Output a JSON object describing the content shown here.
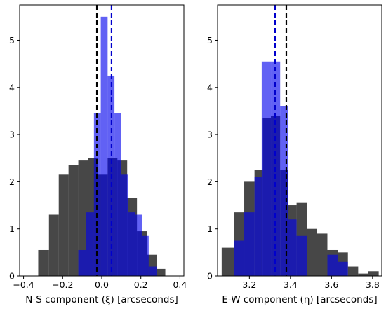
{
  "chart_data": [
    {
      "type": "histogram",
      "xlabel": "N-S component (ξ) [arcseconds]",
      "ylabel": "",
      "xlim": [
        -0.42,
        0.42
      ],
      "ylim": [
        0,
        5.75
      ],
      "xticks": [
        -0.4,
        -0.2,
        0.0,
        0.2,
        0.4
      ],
      "xtick_labels": [
        "−0.4",
        "−0.2",
        "0.0",
        "0.2",
        "0.4"
      ],
      "yticks": [
        0,
        1,
        2,
        3,
        4,
        5
      ],
      "ytick_labels": [
        "0",
        "1",
        "2",
        "3",
        "4",
        "5"
      ],
      "grid": false,
      "series": [
        {
          "color": "#000000",
          "opacity": 0.72,
          "bins": [
            {
              "x0": -0.325,
              "x1": -0.27,
              "y": 0.55
            },
            {
              "x0": -0.27,
              "x1": -0.22,
              "y": 1.3
            },
            {
              "x0": -0.22,
              "x1": -0.17,
              "y": 2.15
            },
            {
              "x0": -0.17,
              "x1": -0.12,
              "y": 2.35
            },
            {
              "x0": -0.12,
              "x1": -0.07,
              "y": 2.45
            },
            {
              "x0": -0.07,
              "x1": -0.02,
              "y": 2.5
            },
            {
              "x0": -0.02,
              "x1": 0.03,
              "y": 2.15
            },
            {
              "x0": 0.03,
              "x1": 0.08,
              "y": 2.5
            },
            {
              "x0": 0.08,
              "x1": 0.13,
              "y": 2.45
            },
            {
              "x0": 0.13,
              "x1": 0.18,
              "y": 1.65
            },
            {
              "x0": 0.18,
              "x1": 0.23,
              "y": 0.95
            },
            {
              "x0": 0.23,
              "x1": 0.28,
              "y": 0.45
            },
            {
              "x0": 0.28,
              "x1": 0.325,
              "y": 0.15
            }
          ]
        },
        {
          "color": "#0000ee",
          "opacity": 0.62,
          "bins": [
            {
              "x0": -0.12,
              "x1": -0.08,
              "y": 0.55
            },
            {
              "x0": -0.08,
              "x1": -0.04,
              "y": 1.35
            },
            {
              "x0": -0.04,
              "x1": -0.005,
              "y": 3.45
            },
            {
              "x0": -0.005,
              "x1": 0.03,
              "y": 5.5
            },
            {
              "x0": 0.03,
              "x1": 0.065,
              "y": 4.25
            },
            {
              "x0": 0.065,
              "x1": 0.1,
              "y": 3.45
            },
            {
              "x0": 0.1,
              "x1": 0.135,
              "y": 2.15
            },
            {
              "x0": 0.135,
              "x1": 0.17,
              "y": 1.35
            },
            {
              "x0": 0.17,
              "x1": 0.205,
              "y": 1.3
            },
            {
              "x0": 0.205,
              "x1": 0.24,
              "y": 0.85
            },
            {
              "x0": 0.24,
              "x1": 0.28,
              "y": 0.2
            }
          ]
        }
      ],
      "vlines": [
        {
          "x": -0.025,
          "color": "#000000"
        },
        {
          "x": 0.05,
          "color": "#0000cc"
        }
      ]
    },
    {
      "type": "histogram",
      "xlabel": "E-W component (η) [arcseconds]",
      "ylabel": "",
      "xlim": [
        3.045,
        3.845
      ],
      "ylim": [
        0,
        5.75
      ],
      "xticks": [
        3.2,
        3.4,
        3.6,
        3.8
      ],
      "xtick_labels": [
        "3.2",
        "3.4",
        "3.6",
        "3.8"
      ],
      "yticks": [
        0,
        1,
        2,
        3,
        4,
        5
      ],
      "ytick_labels": [
        "0",
        "1",
        "2",
        "3",
        "4",
        "5"
      ],
      "grid": false,
      "series": [
        {
          "color": "#000000",
          "opacity": 0.72,
          "bins": [
            {
              "x0": 3.065,
              "x1": 3.125,
              "y": 0.6
            },
            {
              "x0": 3.125,
              "x1": 3.175,
              "y": 1.35
            },
            {
              "x0": 3.175,
              "x1": 3.225,
              "y": 2.0
            },
            {
              "x0": 3.225,
              "x1": 3.265,
              "y": 2.25
            },
            {
              "x0": 3.265,
              "x1": 3.305,
              "y": 3.35
            },
            {
              "x0": 3.305,
              "x1": 3.35,
              "y": 3.4
            },
            {
              "x0": 3.35,
              "x1": 3.39,
              "y": 2.25
            },
            {
              "x0": 3.39,
              "x1": 3.43,
              "y": 1.5
            },
            {
              "x0": 3.43,
              "x1": 3.48,
              "y": 1.55
            },
            {
              "x0": 3.48,
              "x1": 3.53,
              "y": 1.0
            },
            {
              "x0": 3.53,
              "x1": 3.58,
              "y": 0.9
            },
            {
              "x0": 3.58,
              "x1": 3.63,
              "y": 0.55
            },
            {
              "x0": 3.63,
              "x1": 3.68,
              "y": 0.5
            },
            {
              "x0": 3.68,
              "x1": 3.73,
              "y": 0.2
            },
            {
              "x0": 3.73,
              "x1": 3.78,
              "y": 0.05
            },
            {
              "x0": 3.78,
              "x1": 3.83,
              "y": 0.1
            }
          ]
        },
        {
          "color": "#0000ee",
          "opacity": 0.62,
          "bins": [
            {
              "x0": 3.125,
              "x1": 3.175,
              "y": 0.75
            },
            {
              "x0": 3.175,
              "x1": 3.225,
              "y": 1.35
            },
            {
              "x0": 3.225,
              "x1": 3.26,
              "y": 2.1
            },
            {
              "x0": 3.26,
              "x1": 3.305,
              "y": 4.55
            },
            {
              "x0": 3.305,
              "x1": 3.35,
              "y": 4.55
            },
            {
              "x0": 3.35,
              "x1": 3.39,
              "y": 3.6
            },
            {
              "x0": 3.39,
              "x1": 3.43,
              "y": 1.2
            },
            {
              "x0": 3.43,
              "x1": 3.48,
              "y": 0.85
            },
            {
              "x0": 3.58,
              "x1": 3.63,
              "y": 0.45
            },
            {
              "x0": 3.63,
              "x1": 3.68,
              "y": 0.3
            }
          ]
        }
      ],
      "vlines": [
        {
          "x": 3.325,
          "color": "#0000cc"
        },
        {
          "x": 3.38,
          "color": "#000000"
        }
      ]
    }
  ]
}
